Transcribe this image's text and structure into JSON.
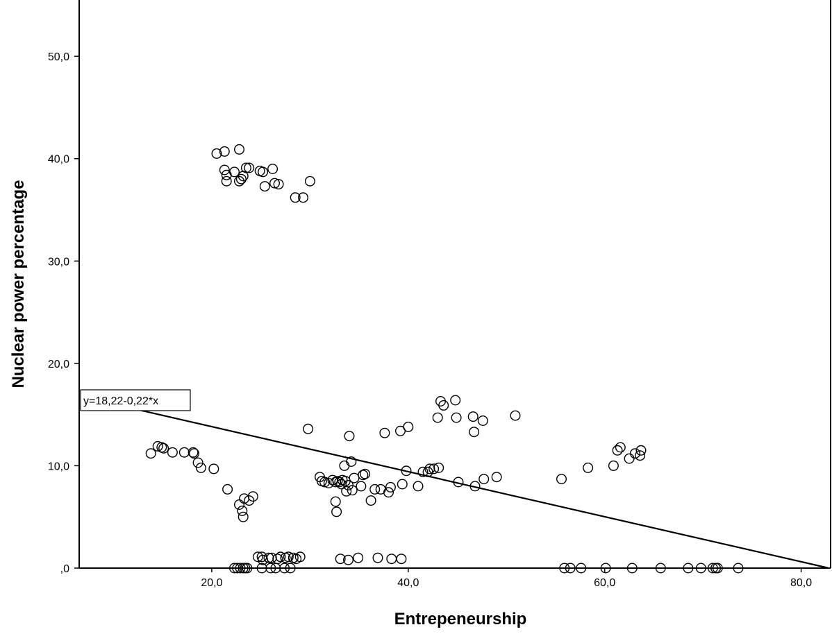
{
  "chart_data": {
    "type": "scatter",
    "xlabel": "Entrepeneurship",
    "ylabel": "Nuclear power percentage",
    "xlim": [
      6.5,
      83.0
    ],
    "ylim": [
      0,
      55.5
    ],
    "x_ticks": [
      20,
      40,
      60,
      80
    ],
    "x_tick_labels": [
      "20,0",
      "40,0",
      "60,0",
      "80,0"
    ],
    "y_ticks": [
      0,
      10,
      20,
      30,
      40,
      50
    ],
    "y_tick_labels": [
      ",0",
      "10,0",
      "20,0",
      "30,0",
      "40,0",
      "50,0"
    ],
    "grid": false,
    "legend": "none",
    "marker": "open-circle",
    "colors": {
      "marker": "#000000",
      "fit_line": "#000000",
      "background": "#ffffff"
    },
    "fit_line": {
      "equation_label": "y=18,22-0,22*x",
      "intercept": 18.22,
      "slope": -0.22
    },
    "points": {
      "x": [
        20.5,
        21.3,
        21.3,
        21.5,
        21.5,
        22.3,
        22.8,
        23.0,
        22.8,
        23.2,
        23.5,
        23.8,
        24.9,
        25.4,
        25.2,
        26.2,
        26.4,
        26.8,
        28.5,
        29.3,
        30.0,
        13.8,
        14.5,
        14.9,
        15.1,
        16.0,
        17.2,
        18.1,
        18.2,
        18.6,
        18.9,
        20.2,
        21.6,
        22.8,
        23.3,
        23.1,
        23.2,
        23.8,
        24.2,
        29.8,
        31.0,
        31.2,
        31.5,
        31.9,
        32.3,
        32.6,
        32.8,
        33.0,
        33.3,
        33.6,
        32.6,
        32.7,
        33.2,
        33.5,
        33.7,
        33.9,
        34.2,
        34.3,
        34.0,
        34.5,
        35.2,
        35.4,
        35.6,
        36.2,
        36.6,
        37.2,
        37.6,
        38.0,
        38.2,
        39.2,
        39.4,
        39.8,
        40.0,
        41.0,
        41.5,
        42.0,
        42.2,
        42.6,
        43.1,
        43.0,
        43.3,
        43.6,
        44.8,
        44.9,
        45.1,
        46.6,
        46.7,
        46.8,
        47.6,
        47.7,
        49.0,
        50.9,
        55.6,
        58.3,
        60.9,
        61.3,
        61.6,
        62.5,
        63.1,
        63.6,
        63.7,
        24.7,
        25.1,
        25.2,
        25.8,
        26.1,
        26.7,
        27.0,
        27.5,
        27.8,
        28.3,
        28.6,
        29.0,
        33.1,
        33.9,
        34.9,
        36.9,
        38.3,
        39.3,
        22.3,
        22.6,
        22.9,
        23.2,
        23.4,
        23.6,
        25.1,
        26.0,
        26.5,
        27.4,
        28.0,
        55.9,
        56.5,
        57.6,
        60.1,
        62.8,
        65.7,
        68.5,
        69.8,
        71.0,
        71.3,
        71.5,
        73.6
      ],
      "y": [
        40.5,
        40.7,
        38.9,
        38.4,
        37.8,
        38.7,
        40.9,
        38.0,
        37.8,
        38.3,
        39.1,
        39.1,
        38.8,
        37.3,
        38.7,
        39.0,
        37.6,
        37.5,
        36.2,
        36.2,
        37.8,
        11.2,
        11.9,
        11.8,
        11.7,
        11.3,
        11.3,
        11.3,
        11.2,
        10.3,
        9.8,
        9.7,
        7.7,
        6.2,
        6.8,
        5.6,
        5.0,
        6.6,
        7.0,
        13.6,
        8.9,
        8.5,
        8.4,
        8.3,
        8.6,
        8.4,
        8.5,
        8.4,
        8.6,
        8.5,
        6.5,
        5.5,
        8.2,
        10.0,
        7.5,
        8.1,
        10.4,
        7.6,
        12.9,
        8.8,
        8.0,
        9.1,
        9.2,
        6.6,
        7.7,
        7.7,
        13.2,
        7.4,
        7.9,
        13.4,
        8.2,
        9.5,
        13.8,
        8.0,
        9.4,
        9.4,
        9.7,
        9.7,
        9.8,
        14.7,
        16.3,
        15.9,
        16.4,
        14.7,
        8.4,
        14.8,
        13.3,
        8.0,
        14.4,
        8.7,
        8.9,
        14.9,
        8.7,
        9.8,
        10.0,
        11.5,
        11.8,
        10.7,
        11.2,
        11.0,
        11.5,
        1.1,
        1.1,
        0.8,
        1.0,
        1.0,
        0.9,
        1.1,
        1.0,
        1.1,
        1.0,
        0.9,
        1.1,
        0.9,
        0.8,
        1.0,
        1.0,
        0.9,
        0.9,
        0.0,
        0.0,
        0.0,
        0.0,
        0.0,
        0.0,
        0.0,
        0.0,
        0.0,
        0.0,
        0.0,
        0.0,
        0.0,
        0.0,
        0.0,
        0.0,
        0.0,
        0.0,
        0.0,
        0.0,
        0.0,
        0.0,
        0.0
      ]
    }
  }
}
